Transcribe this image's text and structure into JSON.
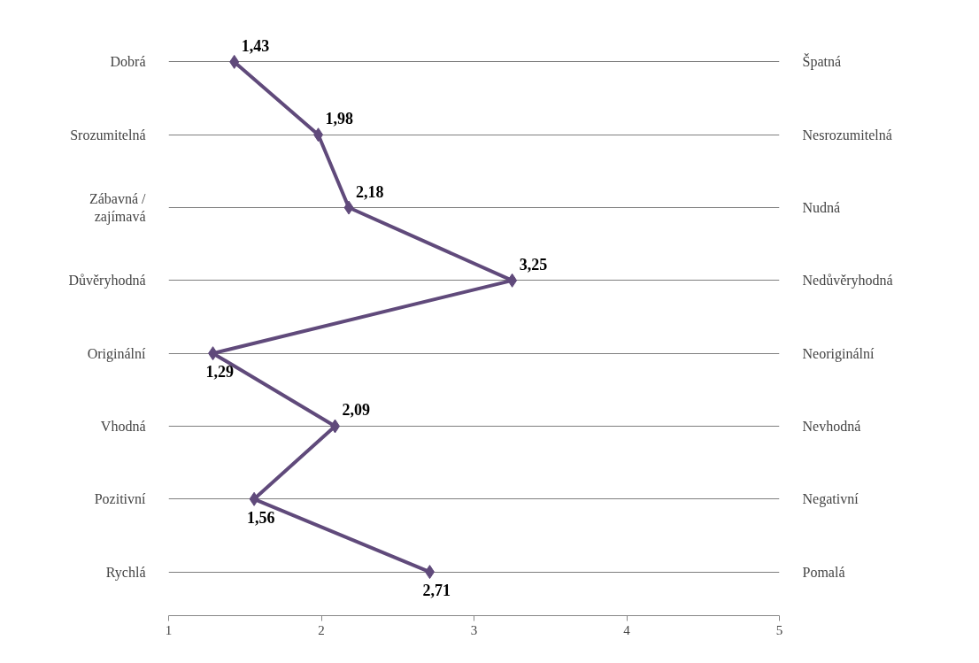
{
  "chart_data": {
    "type": "line",
    "orientation": "horizontal",
    "categories": [
      "Dobrá",
      "Srozumitelná",
      "Zábavná /\nzajímavá",
      "Důvěryhodná",
      "Originální",
      "Vhodná",
      "Pozitivní",
      "Rychlá"
    ],
    "y2_categories": [
      "Špatná",
      "Nesrozumitelná",
      "Nudná",
      "Nedůvěryhodná",
      "Neoriginální",
      "Nevhodná",
      "Negativní",
      "Pomalá"
    ],
    "series": [
      {
        "color": "#604a7b",
        "values": [
          1.43,
          1.98,
          2.18,
          3.25,
          1.29,
          2.09,
          1.56,
          2.71
        ],
        "value_labels": [
          "1,43",
          "1,98",
          "2,18",
          "3,25",
          "1,29",
          "2,09",
          "1,56",
          "2,71"
        ]
      }
    ],
    "xlim": [
      1,
      5
    ],
    "xticks": [
      1,
      2,
      3,
      4,
      5
    ],
    "grid": "y",
    "marker": "diamond"
  }
}
